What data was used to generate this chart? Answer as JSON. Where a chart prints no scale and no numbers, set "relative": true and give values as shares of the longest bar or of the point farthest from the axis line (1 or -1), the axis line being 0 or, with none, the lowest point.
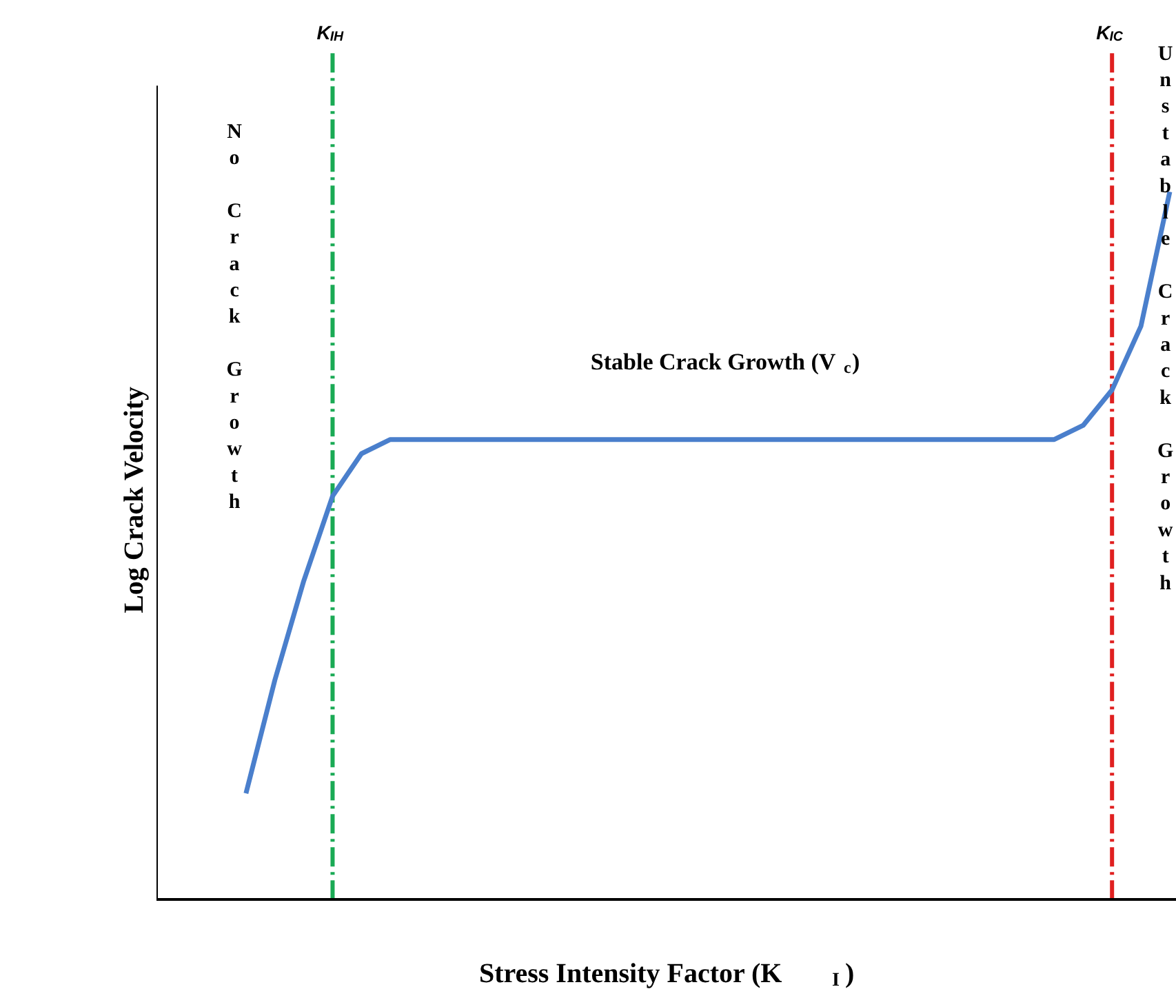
{
  "chart_data": {
    "type": "line",
    "relative": true,
    "xlabel": "Stress Intensity Factor (K$_{I}$)",
    "ylabel": "Log Crack Velocity",
    "categories": [
      null,
      null,
      null,
      null,
      null,
      null,
      null,
      null,
      null,
      null,
      null,
      null,
      null,
      null,
      null,
      null,
      null,
      null,
      null,
      null,
      null,
      null,
      null,
      null,
      null,
      null,
      null,
      null,
      null,
      null,
      null,
      null,
      null
    ],
    "series": [
      {
        "color": "#4a7fcc",
        "values": [
          0.15,
          0.31,
          0.45,
          0.57,
          0.63,
          0.65,
          0.65,
          0.65,
          0.65,
          0.65,
          0.65,
          0.65,
          0.65,
          0.65,
          0.65,
          0.65,
          0.65,
          0.65,
          0.65,
          0.65,
          0.65,
          0.65,
          0.65,
          0.65,
          0.65,
          0.65,
          0.65,
          0.65,
          0.65,
          0.67,
          0.72,
          0.81,
          1
        ]
      }
    ],
    "annotations": [
      "No Crack Growth",
      "Stable Crack Growth (V$_{c}$)",
      "Unstable Crack Growth",
      "K$_{IH}$",
      "K$_{IC}$"
    ],
    "marker": "none",
    "line_style": "solid"
  }
}
